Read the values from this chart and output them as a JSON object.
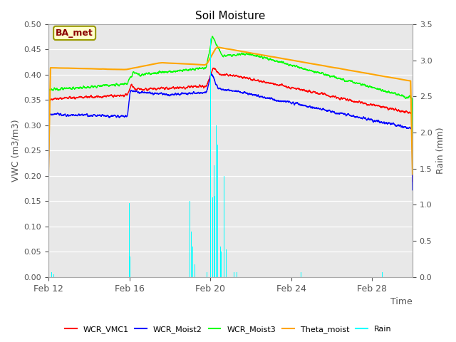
{
  "title": "Soil Moisture",
  "xlabel": "Time",
  "ylabel_left": "VWC (m3/m3)",
  "ylabel_right": "Rain (mm)",
  "ylim_left": [
    0.0,
    0.5
  ],
  "ylim_right": [
    0.0,
    3.5
  ],
  "yticks_left": [
    0.0,
    0.05,
    0.1,
    0.15,
    0.2,
    0.25,
    0.3,
    0.35,
    0.4,
    0.45,
    0.5
  ],
  "yticks_right": [
    0.0,
    0.5,
    1.0,
    1.5,
    2.0,
    2.5,
    3.0,
    3.5
  ],
  "bg_color": "#e8e8e8",
  "annotation_text": "BA_met",
  "annotation_color": "#8b0000",
  "annotation_bg": "#ffffcc",
  "annotation_edge": "#999900",
  "legend_labels": [
    "WCR_VMC1",
    "WCR_Moist2",
    "WCR_Moist3",
    "Theta_moist",
    "Rain"
  ],
  "legend_colors": [
    "red",
    "blue",
    "lime",
    "orange",
    "cyan"
  ],
  "line_colors": {
    "wcr_vmc1": "red",
    "wcr_moist2": "blue",
    "wcr_moist3": "lime",
    "theta_moist": "orange",
    "rain": "cyan"
  },
  "xtick_pos": [
    0,
    4,
    8,
    12,
    16
  ],
  "xtick_labels": [
    "Feb 12",
    "Feb 16",
    "Feb 20",
    "Feb 24",
    "Feb 28"
  ],
  "xlim": [
    0,
    18
  ]
}
